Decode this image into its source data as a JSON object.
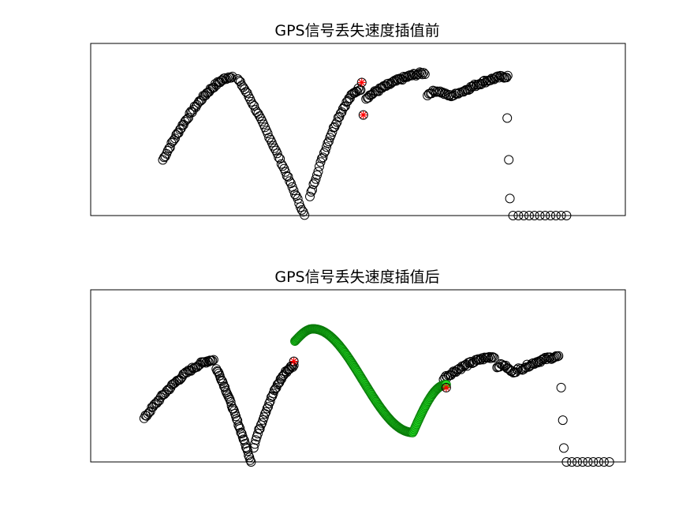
{
  "figure": {
    "background": "#ffffff"
  },
  "chart_data": [
    {
      "type": "scatter",
      "title": "GPS信号丢失速度插值前",
      "xlabel": "",
      "ylabel": "",
      "xlim": [
        0,
        100
      ],
      "ylim": [
        0,
        100
      ],
      "grid": false,
      "axes_ticks": false,
      "series": [
        {
          "marker": "circle",
          "color": "#000000",
          "segments": [
            {
              "x_start": 13.5,
              "x_end": 26.5,
              "y_start": 36,
              "y_end": 90,
              "shape": "rise",
              "n": 58
            },
            {
              "x_start": 27.5,
              "x_end": 40.0,
              "y_start": 88,
              "y_end": 0,
              "shape": "fall",
              "n": 50
            },
            {
              "x_start": 41.0,
              "x_end": 50.5,
              "y_start": 12,
              "y_end": 82,
              "shape": "rise",
              "n": 44
            },
            {
              "x_start": 51.5,
              "x_end": 62.5,
              "y_start": 76,
              "y_end": 92,
              "shape": "rise",
              "n": 48
            },
            {
              "x_start": 63.0,
              "x_end": 69.0,
              "y_start": 78,
              "y_end": 80,
              "shape": "flat",
              "n": 24
            },
            {
              "x_start": 69.5,
              "x_end": 78.0,
              "y_start": 80,
              "y_end": 90,
              "shape": "rise",
              "n": 38
            }
          ],
          "points": [
            {
              "x": 77.9,
              "y": 63
            },
            {
              "x": 78.2,
              "y": 36
            },
            {
              "x": 78.4,
              "y": 11
            },
            {
              "x": 79.0,
              "y": 0
            },
            {
              "x": 80.0,
              "y": 0
            },
            {
              "x": 81.0,
              "y": 0
            },
            {
              "x": 82.0,
              "y": 0
            },
            {
              "x": 83.0,
              "y": 0
            },
            {
              "x": 84.0,
              "y": 0
            },
            {
              "x": 85.0,
              "y": 0
            },
            {
              "x": 86.0,
              "y": 0
            },
            {
              "x": 87.0,
              "y": 0
            },
            {
              "x": 88.0,
              "y": 0
            },
            {
              "x": 89.0,
              "y": 0
            }
          ]
        },
        {
          "marker": "asterisk",
          "color": "#ff0000",
          "points": [
            {
              "x": 50.7,
              "y": 86
            },
            {
              "x": 51.0,
              "y": 65
            }
          ]
        }
      ]
    },
    {
      "type": "scatter",
      "title": "GPS信号丢失速度插值后",
      "xlabel": "",
      "ylabel": "",
      "xlim": [
        0,
        100
      ],
      "ylim": [
        0,
        100
      ],
      "grid": false,
      "axes_ticks": false,
      "series": [
        {
          "marker": "circle",
          "color": "#000000",
          "segments": [
            {
              "x_start": 10.0,
              "x_end": 23.0,
              "y_start": 28,
              "y_end": 66,
              "shape": "rise",
              "n": 56
            },
            {
              "x_start": 23.5,
              "x_end": 30.0,
              "y_start": 60,
              "y_end": 0,
              "shape": "fall",
              "n": 42
            },
            {
              "x_start": 30.5,
              "x_end": 38.0,
              "y_start": 10,
              "y_end": 62,
              "shape": "rise",
              "n": 40
            },
            {
              "x_start": 66.0,
              "x_end": 75.5,
              "y_start": 54,
              "y_end": 68,
              "shape": "rise",
              "n": 42
            },
            {
              "x_start": 76.0,
              "x_end": 80.0,
              "y_start": 61,
              "y_end": 60,
              "shape": "flat",
              "n": 18
            },
            {
              "x_start": 80.5,
              "x_end": 87.5,
              "y_start": 60,
              "y_end": 68,
              "shape": "rise",
              "n": 32
            }
          ],
          "points": [
            {
              "x": 88.0,
              "y": 48
            },
            {
              "x": 88.3,
              "y": 27
            },
            {
              "x": 88.5,
              "y": 9
            },
            {
              "x": 89.0,
              "y": 0
            },
            {
              "x": 90.0,
              "y": 0
            },
            {
              "x": 91.0,
              "y": 0
            },
            {
              "x": 92.0,
              "y": 0
            },
            {
              "x": 93.0,
              "y": 0
            },
            {
              "x": 94.0,
              "y": 0
            },
            {
              "x": 95.0,
              "y": 0
            },
            {
              "x": 96.0,
              "y": 0
            },
            {
              "x": 97.0,
              "y": 0
            }
          ]
        },
        {
          "marker": "circle",
          "color": "#00cc00",
          "interpolated": true,
          "segments": [
            {
              "x_start": 38.2,
              "x_end": 66.5,
              "shape": "sine",
              "y_peak": 86,
              "y_trough": 19,
              "y_end": 50,
              "n": 200
            }
          ]
        },
        {
          "marker": "asterisk",
          "color": "#ff0000",
          "points": [
            {
              "x": 38.0,
              "y": 65
            },
            {
              "x": 66.5,
              "y": 48
            }
          ]
        }
      ]
    }
  ]
}
